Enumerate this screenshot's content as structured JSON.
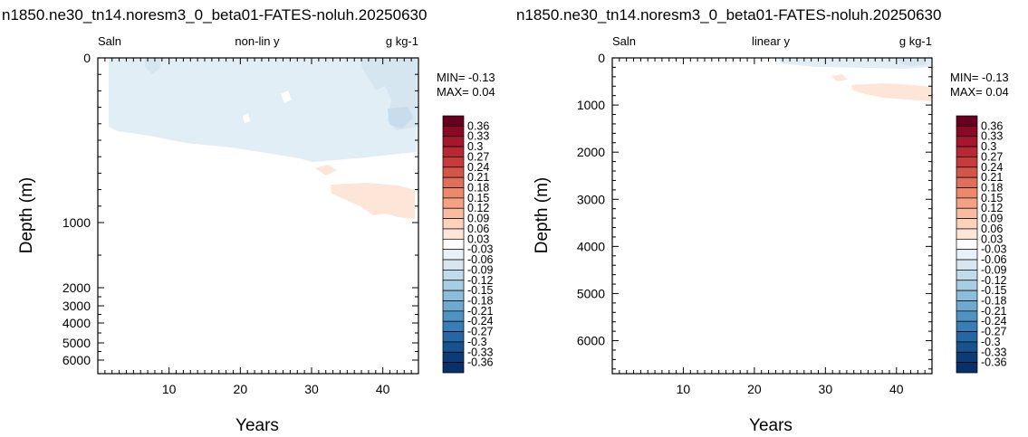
{
  "chart_data": [
    {
      "type": "heatmap",
      "title": "n1850.ne30_tn14.noresm3_0_beta01-FATES-noluh.20250630",
      "variable": "Saln",
      "scale_label": "non-lin y",
      "units": "g kg-1",
      "xlabel": "Years",
      "ylabel": "Depth (m)",
      "xlim": [
        0,
        45
      ],
      "x_ticks": [
        10,
        20,
        30,
        40
      ],
      "y_scale": "non-linear (stretched upper ocean)",
      "y_ticks": [
        0,
        1000,
        2000,
        3000,
        4000,
        5000,
        6000
      ],
      "y_tick_labels": [
        "0",
        "1000",
        "2000",
        "3000",
        "4000",
        "5000",
        "6000"
      ],
      "min_label": "MIN= -0.13",
      "max_label": "MAX=  0.04",
      "min": -0.13,
      "max": 0.04,
      "features": [
        {
          "sign": "negative",
          "level": -0.03,
          "years": [
            0,
            45
          ],
          "depth_m": [
            0,
            560
          ],
          "description": "weak freshening of upper ocean"
        },
        {
          "sign": "negative",
          "level": -0.06,
          "years": [
            8,
            10
          ],
          "depth_m": [
            0,
            60
          ]
        },
        {
          "sign": "negative",
          "level": -0.06,
          "years": [
            33,
            45
          ],
          "depth_m": [
            0,
            300
          ]
        },
        {
          "sign": "positive",
          "level": 0.03,
          "years": [
            31,
            45
          ],
          "depth_m": [
            620,
            1000
          ]
        }
      ]
    },
    {
      "type": "heatmap",
      "title": "n1850.ne30_tn14.noresm3_0_beta01-FATES-noluh.20250630",
      "variable": "Saln",
      "scale_label": "linear y",
      "units": "g kg-1",
      "xlabel": "Years",
      "ylabel": "Depth (m)",
      "xlim": [
        0,
        45
      ],
      "x_ticks": [
        10,
        20,
        30,
        40
      ],
      "ylim": [
        6700,
        0
      ],
      "y_ticks": [
        0,
        1000,
        2000,
        3000,
        4000,
        5000,
        6000
      ],
      "y_tick_labels": [
        "0",
        "1000",
        "2000",
        "3000",
        "4000",
        "5000",
        "6000"
      ],
      "min_label": "MIN= -0.13",
      "max_label": "MAX=  0.04",
      "min": -0.13,
      "max": 0.04,
      "features": [
        {
          "sign": "negative",
          "level": -0.03,
          "years": [
            23,
            45
          ],
          "depth_m": [
            0,
            200
          ]
        },
        {
          "sign": "negative",
          "level": -0.06,
          "years": [
            40,
            44
          ],
          "depth_m": [
            0,
            120
          ]
        },
        {
          "sign": "positive",
          "level": 0.03,
          "years": [
            30,
            45
          ],
          "depth_m": [
            550,
            950
          ]
        }
      ]
    }
  ],
  "colorbar": {
    "labels": [
      "0.36",
      "0.33",
      "0.3",
      "0.27",
      "0.24",
      "0.21",
      "0.18",
      "0.15",
      "0.12",
      "0.09",
      "0.06",
      "0.03",
      "-0.03",
      "-0.06",
      "-0.09",
      "-0.12",
      "-0.15",
      "-0.18",
      "-0.21",
      "-0.24",
      "-0.27",
      "-0.3",
      "-0.33",
      "-0.36"
    ],
    "colors": [
      "#67001f",
      "#8a0a25",
      "#a5172c",
      "#b72834",
      "#c63c3c",
      "#d25649",
      "#df6e5a",
      "#ea896c",
      "#f3a384",
      "#f8bda0",
      "#fbd3bd",
      "#fde6d8",
      "#ffffff",
      "#e8f1f7",
      "#d7e7f1",
      "#c2dbeb",
      "#a8cde3",
      "#8cbdda",
      "#6ea9d0",
      "#4f93c2",
      "#387db5",
      "#2567a4",
      "#165190",
      "#0b3c76",
      "#08306b"
    ]
  }
}
